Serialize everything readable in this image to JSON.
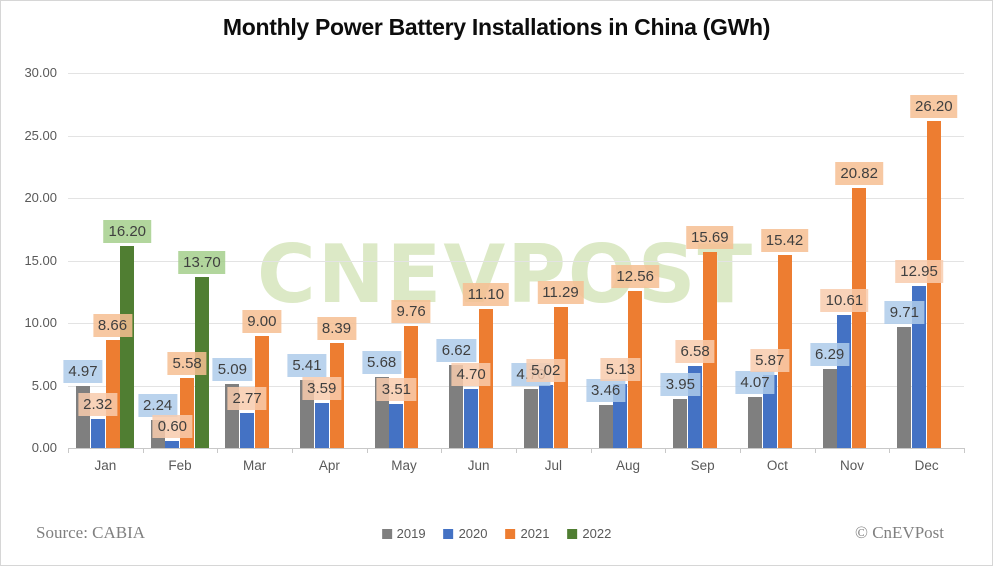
{
  "watermark": "CNEVPOST",
  "footer": {
    "source": "Source: CABIA",
    "credit": "© CnEVPost"
  },
  "chart_data": {
    "type": "bar",
    "title": "Monthly Power Battery Installations in China (GWh)",
    "categories": [
      "Jan",
      "Feb",
      "Mar",
      "Apr",
      "May",
      "Jun",
      "Jul",
      "Aug",
      "Sep",
      "Oct",
      "Nov",
      "Dec"
    ],
    "series": [
      {
        "name": "2019",
        "color": "#7F7F7F",
        "label_bg": "#AECBEA",
        "values": [
          4.97,
          2.24,
          5.09,
          5.41,
          5.68,
          6.62,
          4.7,
          3.46,
          3.95,
          4.07,
          6.29,
          9.71
        ]
      },
      {
        "name": "2020",
        "color": "#4472C4",
        "label_bg": "#F8CBAD",
        "values": [
          2.32,
          0.6,
          2.77,
          3.59,
          3.51,
          4.7,
          5.02,
          5.13,
          6.58,
          5.87,
          10.61,
          12.95
        ]
      },
      {
        "name": "2021",
        "color": "#ED7D31",
        "label_bg": "#F6BE92",
        "values": [
          8.66,
          5.58,
          9.0,
          8.39,
          9.76,
          11.1,
          11.29,
          12.56,
          15.69,
          15.42,
          20.82,
          26.2
        ]
      },
      {
        "name": "2022",
        "color": "#507E32",
        "label_bg": "#A5CF8C",
        "values": [
          16.2,
          13.7,
          null,
          null,
          null,
          null,
          null,
          null,
          null,
          null,
          null,
          null
        ]
      }
    ],
    "xlabel": "",
    "ylabel": "",
    "ylim": [
      0,
      30
    ],
    "ytick_step": 5,
    "yticks": [
      "0.00",
      "5.00",
      "10.00",
      "15.00",
      "20.00",
      "25.00",
      "30.00"
    ],
    "grid": true,
    "legend_position": "bottom",
    "unit": "GWh",
    "source": "CABIA"
  }
}
